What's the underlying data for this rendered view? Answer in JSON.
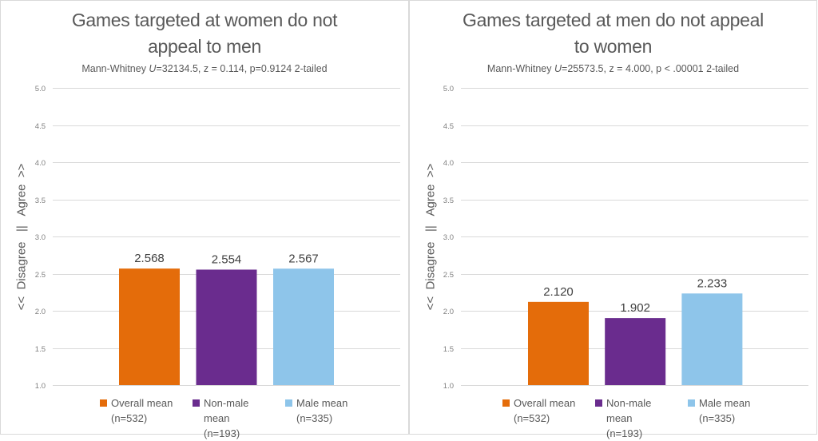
{
  "chart_data": [
    {
      "type": "bar",
      "title": "Games targeted at women do not appeal to men",
      "title_lines": [
        "Games targeted at women do not",
        "appeal to men"
      ],
      "subtitle_prefix": "Mann-Whitney ",
      "subtitle_u": "U",
      "subtitle_rest": "=32134.5, z = 0.114, p=0.9124 2-tailed",
      "ylabel": "<<  Disagree   ||   Agree  >>",
      "ylim": [
        1.0,
        5.0
      ],
      "yticks": [
        "1.0",
        "1.5",
        "2.0",
        "2.5",
        "3.0",
        "3.5",
        "4.0",
        "4.5",
        "5.0"
      ],
      "grid": true,
      "legend_position": "bottom",
      "series": [
        {
          "name": "Overall mean",
          "n": "(n=532)",
          "value": 2.568,
          "label": "2.568",
          "color": "#E46C0A"
        },
        {
          "name": "Non-male mean",
          "n": "(n=193)",
          "value": 2.554,
          "label": "2.554",
          "color": "#6A2C8E"
        },
        {
          "name": "Male mean",
          "n": "(n=335)",
          "value": 2.567,
          "label": "2.567",
          "color": "#8EC5EA"
        }
      ]
    },
    {
      "type": "bar",
      "title": "Games targeted at men do not appeal to women",
      "title_lines": [
        "Games targeted at men do not appeal",
        "to women"
      ],
      "subtitle_prefix": "Mann-Whitney ",
      "subtitle_u": "U",
      "subtitle_rest": "=25573.5, z = 4.000, p < .00001 2-tailed",
      "ylabel": "<<  Disagree   ||   Agree  >>",
      "ylim": [
        1.0,
        5.0
      ],
      "yticks": [
        "1.0",
        "1.5",
        "2.0",
        "2.5",
        "3.0",
        "3.5",
        "4.0",
        "4.5",
        "5.0"
      ],
      "grid": true,
      "legend_position": "bottom",
      "series": [
        {
          "name": "Overall mean",
          "n": "(n=532)",
          "value": 2.12,
          "label": "2.120",
          "color": "#E46C0A"
        },
        {
          "name": "Non-male mean",
          "n": "(n=193)",
          "value": 1.902,
          "label": "1.902",
          "color": "#6A2C8E"
        },
        {
          "name": "Male mean",
          "n": "(n=335)",
          "value": 2.233,
          "label": "2.233",
          "color": "#8EC5EA"
        }
      ]
    }
  ]
}
